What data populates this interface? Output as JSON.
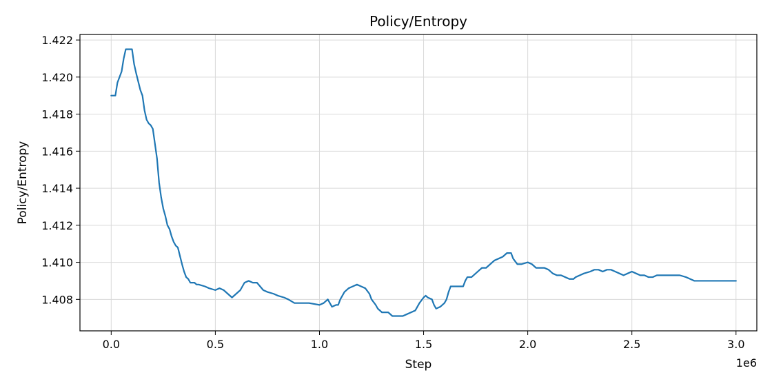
{
  "chart_data": {
    "type": "line",
    "title": "Policy/Entropy",
    "xlabel": "Step",
    "ylabel": "Policy/Entropy",
    "x_scale_label": "1e6",
    "xlim": [
      -0.15,
      3.1
    ],
    "ylim": [
      1.4063,
      1.4223
    ],
    "grid": true,
    "line_color": "#1f77b4",
    "x_ticks": [
      0.0,
      0.5,
      1.0,
      1.5,
      2.0,
      2.5,
      3.0
    ],
    "x_tick_labels": [
      "0.0",
      "0.5",
      "1.0",
      "1.5",
      "2.0",
      "2.5",
      "3.0"
    ],
    "y_ticks": [
      1.408,
      1.41,
      1.412,
      1.414,
      1.416,
      1.418,
      1.42,
      1.422
    ],
    "y_tick_labels": [
      "1.408",
      "1.410",
      "1.412",
      "1.414",
      "1.416",
      "1.418",
      "1.420",
      "1.422"
    ],
    "series": [
      {
        "x": [
          0.0,
          0.02,
          0.03,
          0.05,
          0.06,
          0.07,
          0.08,
          0.1,
          0.11,
          0.12,
          0.14,
          0.15,
          0.16,
          0.17,
          0.18,
          0.19,
          0.2,
          0.21,
          0.22,
          0.23,
          0.24,
          0.25,
          0.26,
          0.27,
          0.28,
          0.29,
          0.3,
          0.31,
          0.32,
          0.34,
          0.35,
          0.36,
          0.37,
          0.38,
          0.4,
          0.41,
          0.42,
          0.45,
          0.47,
          0.5,
          0.52,
          0.54,
          0.56,
          0.58,
          0.6,
          0.62,
          0.64,
          0.66,
          0.68,
          0.7,
          0.73,
          0.75,
          0.78,
          0.8,
          0.83,
          0.85,
          0.88,
          0.9,
          0.95,
          1.0,
          1.02,
          1.04,
          1.05,
          1.06,
          1.08,
          1.09,
          1.1,
          1.12,
          1.14,
          1.16,
          1.18,
          1.2,
          1.22,
          1.24,
          1.25,
          1.27,
          1.28,
          1.3,
          1.32,
          1.33,
          1.35,
          1.38,
          1.4,
          1.42,
          1.44,
          1.46,
          1.47,
          1.48,
          1.5,
          1.51,
          1.52,
          1.54,
          1.55,
          1.56,
          1.58,
          1.6,
          1.61,
          1.62,
          1.63,
          1.64,
          1.67,
          1.69,
          1.7,
          1.71,
          1.73,
          1.75,
          1.77,
          1.78,
          1.8,
          1.82,
          1.84,
          1.86,
          1.88,
          1.9,
          1.92,
          1.93,
          1.95,
          1.97,
          2.0,
          2.02,
          2.04,
          2.06,
          2.08,
          2.1,
          2.12,
          2.14,
          2.16,
          2.18,
          2.2,
          2.22,
          2.23,
          2.25,
          2.27,
          2.3,
          2.32,
          2.34,
          2.36,
          2.38,
          2.4,
          2.42,
          2.44,
          2.46,
          2.48,
          2.5,
          2.52,
          2.54,
          2.56,
          2.58,
          2.6,
          2.62,
          2.64,
          2.66,
          2.68,
          2.7,
          2.73,
          2.76,
          2.78,
          2.8,
          2.84,
          2.88,
          2.92,
          2.96,
          3.0
        ],
        "y": [
          1.419,
          1.419,
          1.4197,
          1.4203,
          1.421,
          1.4215,
          1.4215,
          1.4215,
          1.4207,
          1.4202,
          1.4193,
          1.419,
          1.4182,
          1.4177,
          1.4175,
          1.4174,
          1.4172,
          1.4164,
          1.4156,
          1.4143,
          1.4135,
          1.4129,
          1.4125,
          1.412,
          1.4118,
          1.4114,
          1.4111,
          1.4109,
          1.4108,
          1.4099,
          1.4095,
          1.4092,
          1.4091,
          1.4089,
          1.4089,
          1.4088,
          1.4088,
          1.4087,
          1.4086,
          1.4085,
          1.4086,
          1.4085,
          1.4083,
          1.4081,
          1.4083,
          1.4085,
          1.4089,
          1.409,
          1.4089,
          1.4089,
          1.4085,
          1.4084,
          1.4083,
          1.4082,
          1.4081,
          1.408,
          1.4078,
          1.4078,
          1.4078,
          1.4077,
          1.4078,
          1.408,
          1.4078,
          1.4076,
          1.4077,
          1.4077,
          1.408,
          1.4084,
          1.4086,
          1.4087,
          1.4088,
          1.4087,
          1.4086,
          1.4083,
          1.408,
          1.4077,
          1.4075,
          1.4073,
          1.4073,
          1.4073,
          1.4071,
          1.4071,
          1.4071,
          1.4072,
          1.4073,
          1.4074,
          1.4076,
          1.4078,
          1.4081,
          1.4082,
          1.4081,
          1.408,
          1.4077,
          1.4075,
          1.4076,
          1.4078,
          1.408,
          1.4084,
          1.4087,
          1.4087,
          1.4087,
          1.4087,
          1.409,
          1.4092,
          1.4092,
          1.4094,
          1.4096,
          1.4097,
          1.4097,
          1.4099,
          1.4101,
          1.4102,
          1.4103,
          1.4105,
          1.4105,
          1.4102,
          1.4099,
          1.4099,
          1.41,
          1.4099,
          1.4097,
          1.4097,
          1.4097,
          1.4096,
          1.4094,
          1.4093,
          1.4093,
          1.4092,
          1.4091,
          1.4091,
          1.4092,
          1.4093,
          1.4094,
          1.4095,
          1.4096,
          1.4096,
          1.4095,
          1.4096,
          1.4096,
          1.4095,
          1.4094,
          1.4093,
          1.4094,
          1.4095,
          1.4094,
          1.4093,
          1.4093,
          1.4092,
          1.4092,
          1.4093,
          1.4093,
          1.4093,
          1.4093,
          1.4093,
          1.4093,
          1.4092,
          1.4091,
          1.409,
          1.409,
          1.409,
          1.409,
          1.409,
          1.409
        ]
      }
    ]
  }
}
